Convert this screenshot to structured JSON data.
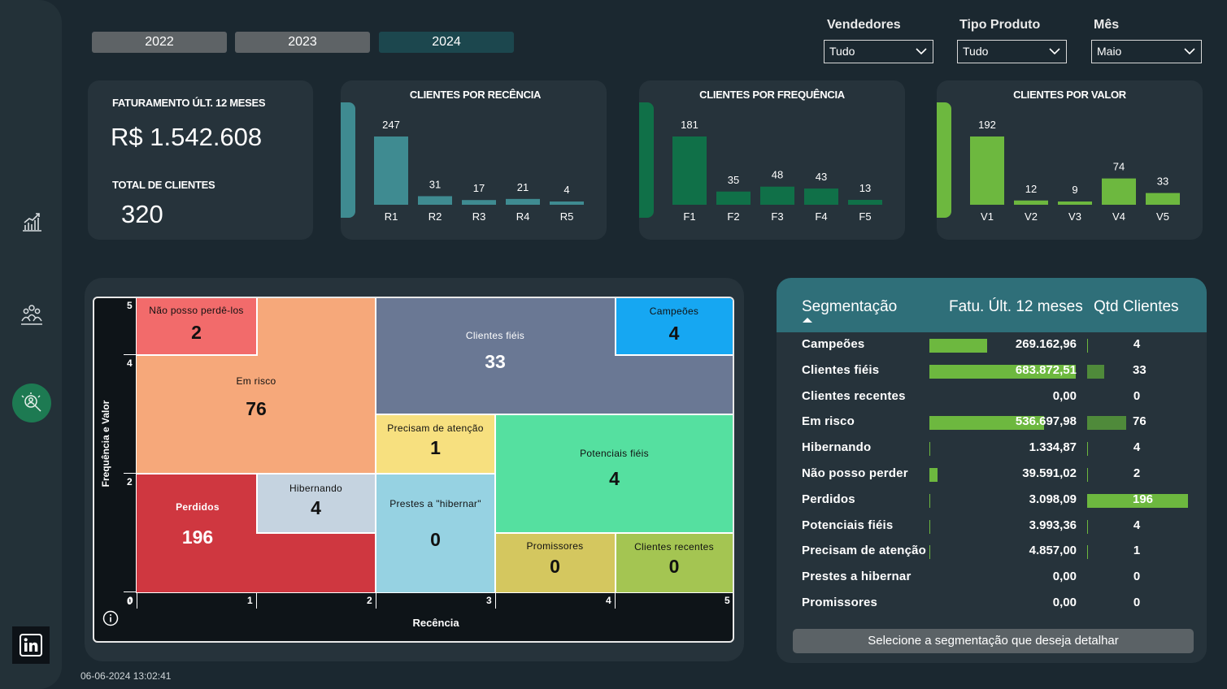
{
  "years": [
    "2022",
    "2023",
    "2024"
  ],
  "selected_year": "2024",
  "filters": [
    {
      "label": "Vendedores",
      "value": "Tudo"
    },
    {
      "label": "Tipo Produto",
      "value": "Tudo"
    },
    {
      "label": "Mês",
      "value": "Maio"
    }
  ],
  "kpi": {
    "revenue_label": "FATURAMENTO ÚLT. 12 MESES",
    "revenue_value": "R$ 1.542.608",
    "clients_label": "TOTAL DE CLIENTES",
    "clients_value": "320"
  },
  "colors": {
    "recency": "#3f8b91",
    "frequency": "#107048",
    "value": "#6db83f",
    "segment_header": "#2f6f79"
  },
  "chart_data": [
    {
      "type": "bar",
      "title": "CLIENTES POR RECÊNCIA",
      "categories": [
        "R1",
        "R2",
        "R3",
        "R4",
        "R5"
      ],
      "values": [
        247,
        31,
        17,
        21,
        4
      ]
    },
    {
      "type": "bar",
      "title": "CLIENTES POR FREQUÊNCIA",
      "categories": [
        "F1",
        "F2",
        "F3",
        "F4",
        "F5"
      ],
      "values": [
        181,
        35,
        48,
        43,
        13
      ]
    },
    {
      "type": "bar",
      "title": "CLIENTES POR VALOR",
      "categories": [
        "V1",
        "V2",
        "V3",
        "V4",
        "V5"
      ],
      "values": [
        192,
        12,
        9,
        74,
        33
      ]
    }
  ],
  "matrix": {
    "x_label": "Recência",
    "y_label": "Frequência e Valor",
    "x_ticks": [
      "0",
      "1",
      "2",
      "3",
      "4",
      "5"
    ],
    "y_ticks": [
      "5",
      "4",
      "2",
      "0"
    ],
    "cells": [
      {
        "name": "Não posso perdê-los",
        "value": "2"
      },
      {
        "name": "Em risco",
        "value": "76"
      },
      {
        "name": "Clientes fiéis",
        "value": "33"
      },
      {
        "name": "Campeões",
        "value": "4"
      },
      {
        "name": "Perdidos",
        "value": "196"
      },
      {
        "name": "Hibernando",
        "value": "4"
      },
      {
        "name": "Precisam de atenção",
        "value": "1"
      },
      {
        "name": "Prestes a \"hibernar\"",
        "value": "0"
      },
      {
        "name": "Potenciais fiéis",
        "value": "4"
      },
      {
        "name": "Promissores",
        "value": "0"
      },
      {
        "name": "Clientes recentes",
        "value": "0"
      }
    ]
  },
  "segment_table": {
    "headers": [
      "Segmentação",
      "Fatu. Últ. 12 meses",
      "Qtd Clientes"
    ],
    "rows": [
      {
        "name": "Campeões",
        "revenue": "269.162,96",
        "revenue_num": 269162.96,
        "qty": "4",
        "qty_num": 4
      },
      {
        "name": "Clientes fiéis",
        "revenue": "683.872,51",
        "revenue_num": 683872.51,
        "qty": "33",
        "qty_num": 33
      },
      {
        "name": "Clientes recentes",
        "revenue": "0,00",
        "revenue_num": 0,
        "qty": "0",
        "qty_num": 0
      },
      {
        "name": "Em risco",
        "revenue": "536.697,98",
        "revenue_num": 536697.98,
        "qty": "76",
        "qty_num": 76
      },
      {
        "name": "Hibernando",
        "revenue": "1.334,87",
        "revenue_num": 1334.87,
        "qty": "4",
        "qty_num": 4
      },
      {
        "name": "Não posso perder",
        "revenue": "39.591,02",
        "revenue_num": 39591.02,
        "qty": "2",
        "qty_num": 2
      },
      {
        "name": "Perdidos",
        "revenue": "3.098,09",
        "revenue_num": 3098.09,
        "qty": "196",
        "qty_num": 196
      },
      {
        "name": "Potenciais fiéis",
        "revenue": "3.993,36",
        "revenue_num": 3993.36,
        "qty": "4",
        "qty_num": 4
      },
      {
        "name": "Precisam de atenção",
        "revenue": "4.857,00",
        "revenue_num": 4857.0,
        "qty": "1",
        "qty_num": 1
      },
      {
        "name": "Prestes a hibernar",
        "revenue": "0,00",
        "revenue_num": 0,
        "qty": "0",
        "qty_num": 0
      },
      {
        "name": "Promissores",
        "revenue": "0,00",
        "revenue_num": 0,
        "qty": "0",
        "qty_num": 0
      }
    ],
    "footer_button": "Selecione a segmentação que deseja detalhar"
  },
  "timestamp": "06-06-2024 13:02:41",
  "icons": [
    "chart-growth-icon",
    "team-icon",
    "customer-search-icon",
    "linkedin-icon",
    "info-icon",
    "chevron-down-icon"
  ]
}
